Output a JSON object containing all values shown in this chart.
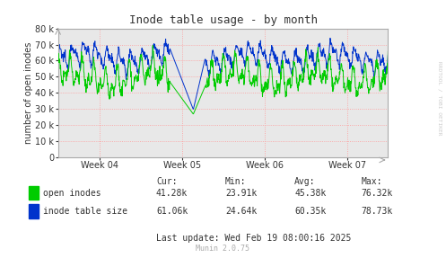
{
  "title": "Inode table usage - by month",
  "ylabel": "number of open inodes",
  "background_color": "#ffffff",
  "plot_bg_color": "#e8e8e8",
  "grid_color": "#ff9999",
  "axis_color": "#aaaaaa",
  "line1_color": "#00cc00",
  "line2_color": "#0033cc",
  "ylim": [
    0,
    80000
  ],
  "yticks": [
    0,
    10000,
    20000,
    30000,
    40000,
    50000,
    60000,
    70000,
    80000
  ],
  "xtick_labels": [
    "Week 04",
    "Week 05",
    "Week 06",
    "Week 07"
  ],
  "legend_items": [
    "open inodes",
    "inode table size"
  ],
  "legend_colors": [
    "#00cc00",
    "#0033cc"
  ],
  "stats_header": [
    "Cur:",
    "Min:",
    "Avg:",
    "Max:"
  ],
  "stats_row1": [
    "41.28k",
    "23.91k",
    "45.38k",
    "76.32k"
  ],
  "stats_row2": [
    "61.06k",
    "24.64k",
    "60.35k",
    "78.73k"
  ],
  "last_update": "Last update: Wed Feb 19 08:00:16 2025",
  "munin_version": "Munin 2.0.75",
  "rrdtool_label": "RRDTOOL / TOBI OETIKER",
  "title_color": "#333333",
  "text_color": "#333333",
  "label_color": "#aaaaaa"
}
